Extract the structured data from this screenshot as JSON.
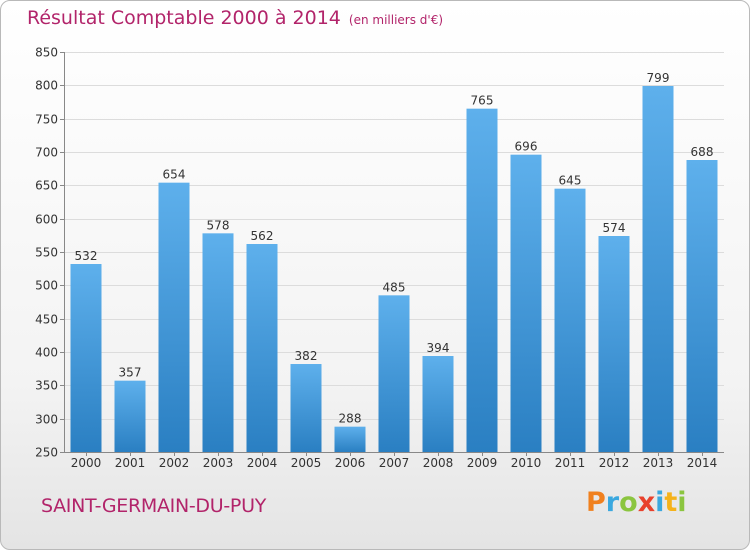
{
  "header": {
    "title": "Résultat Comptable 2000 à 2014",
    "unit": "(en milliers d'€)"
  },
  "footer": {
    "town": "SAINT-GERMAIN-DU-PUY",
    "logo_text": "Proxiti"
  },
  "colors": {
    "accent": "#b2246a",
    "bar_light": "#5eb0ec",
    "bar_dark": "#2a7fc2",
    "logo_p": "#f0801e",
    "logo_r": "#3aa8df",
    "logo_o": "#8bc53f",
    "logo_x": "#e8412c",
    "logo_i": "#3aa8df",
    "logo_t": "#f5b21a",
    "logo_i2": "#8bc53f"
  },
  "chart_data": {
    "type": "bar",
    "title": "Résultat Comptable 2000 à 2014",
    "categories": [
      "2000",
      "2001",
      "2002",
      "2003",
      "2004",
      "2005",
      "2006",
      "2007",
      "2008",
      "2009",
      "2010",
      "2011",
      "2012",
      "2013",
      "2014"
    ],
    "values": [
      532,
      357,
      654,
      578,
      562,
      382,
      288,
      485,
      394,
      765,
      696,
      645,
      574,
      799,
      688
    ],
    "ylim": [
      250,
      850
    ],
    "yticks": [
      250,
      300,
      350,
      400,
      450,
      500,
      550,
      600,
      650,
      700,
      750,
      800,
      850
    ],
    "grid": true,
    "xlabel": "",
    "ylabel": ""
  }
}
